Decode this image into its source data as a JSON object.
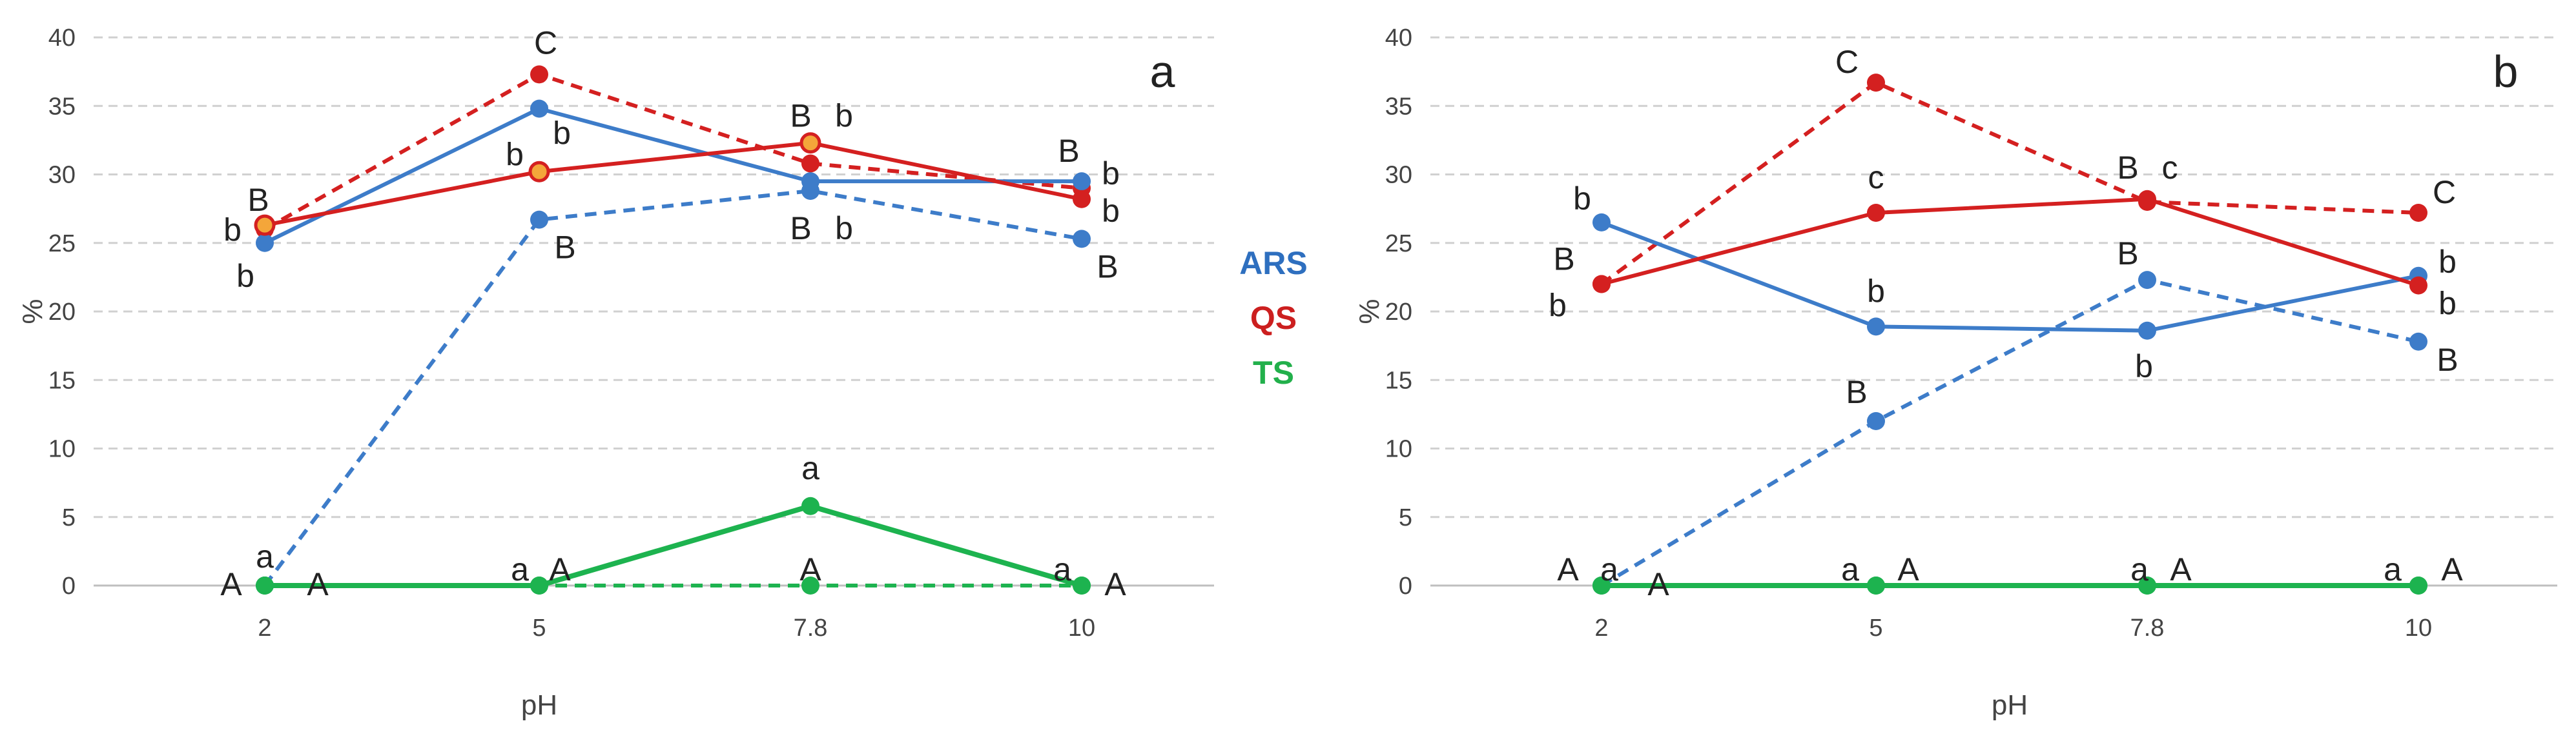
{
  "legend": {
    "items": [
      {
        "label": "ARS",
        "color": "#2e6fbf"
      },
      {
        "label": "QS",
        "color": "#cc1f1f"
      },
      {
        "label": "TS",
        "color": "#22b04b"
      }
    ]
  },
  "colors": {
    "ARS": "#3d7cc9",
    "QS": "#d42020",
    "TS": "#1db34f",
    "marker_orange": "#f4a63a"
  },
  "chart_data": [
    {
      "type": "line",
      "panel_label": "a",
      "categories": [
        "2",
        "5",
        "7.8",
        "10"
      ],
      "xlabel": "pH",
      "ylabel": "%",
      "ylim": [
        0,
        40
      ],
      "yticks": [
        0,
        5,
        10,
        15,
        20,
        25,
        30,
        35,
        40
      ],
      "grid": true,
      "series": [
        {
          "group": "ARS",
          "style": "solid",
          "values": [
            25.0,
            34.8,
            29.5,
            29.5
          ]
        },
        {
          "group": "ARS",
          "style": "dashed",
          "values": [
            0,
            26.7,
            28.8,
            25.3
          ]
        },
        {
          "group": "QS",
          "style": "solid",
          "values": [
            26.3,
            30.2,
            32.3,
            28.2
          ]
        },
        {
          "group": "QS",
          "style": "dashed",
          "values": [
            26.0,
            37.3,
            30.8,
            29.0
          ]
        },
        {
          "group": "TS",
          "style": "solid",
          "values": [
            0,
            0,
            5.8,
            0
          ]
        },
        {
          "group": "TS",
          "style": "dashed",
          "values": [
            0,
            0,
            0,
            0
          ]
        }
      ],
      "annotations": [
        {
          "text": "B",
          "x": 0,
          "y": 26.3,
          "dx": -10,
          "dy": -22
        },
        {
          "text": "b",
          "x": 0,
          "y": 26.0,
          "dx": -50,
          "dy": 18
        },
        {
          "text": "b",
          "x": 0,
          "y": 25.0,
          "dx": -30,
          "dy": 68
        },
        {
          "text": "C",
          "x": 1,
          "y": 37.3,
          "dx": 10,
          "dy": -32
        },
        {
          "text": "b",
          "x": 1,
          "y": 34.8,
          "dx": 35,
          "dy": 55
        },
        {
          "text": "b",
          "x": 1,
          "y": 30.2,
          "dx": -38,
          "dy": -10
        },
        {
          "text": "B",
          "x": 1,
          "y": 26.7,
          "dx": 40,
          "dy": 60
        },
        {
          "text": "B",
          "x": 2,
          "y": 32.3,
          "dx": -15,
          "dy": -25
        },
        {
          "text": "b",
          "x": 2,
          "y": 32.3,
          "dx": 52,
          "dy": -25
        },
        {
          "text": "B",
          "x": 2,
          "y": 28.8,
          "dx": -15,
          "dy": 75
        },
        {
          "text": "b",
          "x": 2,
          "y": 28.8,
          "dx": 52,
          "dy": 75
        },
        {
          "text": "B",
          "x": 3,
          "y": 29.5,
          "dx": -20,
          "dy": -30
        },
        {
          "text": "b",
          "x": 3,
          "y": 29.5,
          "dx": 45,
          "dy": 5
        },
        {
          "text": "b",
          "x": 3,
          "y": 28.2,
          "dx": 45,
          "dy": 35
        },
        {
          "text": "B",
          "x": 3,
          "y": 25.3,
          "dx": 40,
          "dy": 60
        },
        {
          "text": "A",
          "x": 0,
          "y": 0,
          "dx": -52,
          "dy": 15
        },
        {
          "text": "a",
          "x": 0,
          "y": 0,
          "dx": 0,
          "dy": -28
        },
        {
          "text": "A",
          "x": 0,
          "y": 0,
          "dx": 82,
          "dy": 15
        },
        {
          "text": "a",
          "x": 1,
          "y": 0,
          "dx": -30,
          "dy": -8
        },
        {
          "text": "A",
          "x": 1,
          "y": 0,
          "dx": 32,
          "dy": -8
        },
        {
          "text": "a",
          "x": 2,
          "y": 5.8,
          "dx": 0,
          "dy": -42
        },
        {
          "text": "A",
          "x": 2,
          "y": 0,
          "dx": 0,
          "dy": -8
        },
        {
          "text": "a",
          "x": 3,
          "y": 0,
          "dx": -30,
          "dy": -8
        },
        {
          "text": "A",
          "x": 3,
          "y": 0,
          "dx": 52,
          "dy": 15
        }
      ]
    },
    {
      "type": "line",
      "panel_label": "b",
      "categories": [
        "2",
        "5",
        "7.8",
        "10"
      ],
      "xlabel": "pH",
      "ylabel": "%",
      "ylim": [
        0,
        40
      ],
      "yticks": [
        0,
        5,
        10,
        15,
        20,
        25,
        30,
        35,
        40
      ],
      "grid": true,
      "series": [
        {
          "group": "ARS",
          "style": "solid",
          "values": [
            26.5,
            18.9,
            18.6,
            22.6
          ]
        },
        {
          "group": "ARS",
          "style": "dashed",
          "values": [
            0,
            12.0,
            22.3,
            17.8
          ]
        },
        {
          "group": "QS",
          "style": "solid",
          "values": [
            22.0,
            27.2,
            28.2,
            21.9
          ]
        },
        {
          "group": "QS",
          "style": "dashed",
          "values": [
            22.0,
            36.7,
            28.0,
            27.2
          ]
        },
        {
          "group": "TS",
          "style": "solid",
          "values": [
            0,
            0,
            0,
            0
          ]
        },
        {
          "group": "TS",
          "style": "dashed",
          "values": [
            0,
            0,
            0,
            0
          ]
        }
      ],
      "annotations": [
        {
          "text": "b",
          "x": 0,
          "y": 26.5,
          "dx": -30,
          "dy": -20
        },
        {
          "text": "B",
          "x": 0,
          "y": 22.0,
          "dx": -58,
          "dy": -22
        },
        {
          "text": "b",
          "x": 0,
          "y": 22.0,
          "dx": -68,
          "dy": 50
        },
        {
          "text": "C",
          "x": 1,
          "y": 36.7,
          "dx": -45,
          "dy": -15
        },
        {
          "text": "c",
          "x": 1,
          "y": 27.2,
          "dx": 0,
          "dy": -38
        },
        {
          "text": "b",
          "x": 1,
          "y": 18.9,
          "dx": 0,
          "dy": -38
        },
        {
          "text": "B",
          "x": 1,
          "y": 12.0,
          "dx": -30,
          "dy": -28
        },
        {
          "text": "B",
          "x": 2,
          "y": 28.2,
          "dx": -30,
          "dy": -32
        },
        {
          "text": "c",
          "x": 2,
          "y": 28.2,
          "dx": 35,
          "dy": -32
        },
        {
          "text": "B",
          "x": 2,
          "y": 22.3,
          "dx": -30,
          "dy": -24
        },
        {
          "text": "b",
          "x": 2,
          "y": 18.6,
          "dx": -5,
          "dy": 72
        },
        {
          "text": "C",
          "x": 3,
          "y": 27.2,
          "dx": 40,
          "dy": -15
        },
        {
          "text": "b",
          "x": 3,
          "y": 22.6,
          "dx": 45,
          "dy": -5
        },
        {
          "text": "b",
          "x": 3,
          "y": 21.9,
          "dx": 45,
          "dy": 45
        },
        {
          "text": "B",
          "x": 3,
          "y": 17.8,
          "dx": 45,
          "dy": 45
        },
        {
          "text": "A",
          "x": 0,
          "y": 0,
          "dx": -52,
          "dy": -8
        },
        {
          "text": "a",
          "x": 0,
          "y": 0,
          "dx": 12,
          "dy": -8
        },
        {
          "text": "A",
          "x": 0,
          "y": 0,
          "dx": 88,
          "dy": 15
        },
        {
          "text": "a",
          "x": 1,
          "y": 0,
          "dx": -40,
          "dy": -8
        },
        {
          "text": "A",
          "x": 1,
          "y": 0,
          "dx": 50,
          "dy": -8
        },
        {
          "text": "a",
          "x": 2,
          "y": 0,
          "dx": -12,
          "dy": -8
        },
        {
          "text": "A",
          "x": 2,
          "y": 0,
          "dx": 52,
          "dy": -8
        },
        {
          "text": "a",
          "x": 3,
          "y": 0,
          "dx": -40,
          "dy": -8
        },
        {
          "text": "A",
          "x": 3,
          "y": 0,
          "dx": 52,
          "dy": -8
        }
      ]
    }
  ]
}
